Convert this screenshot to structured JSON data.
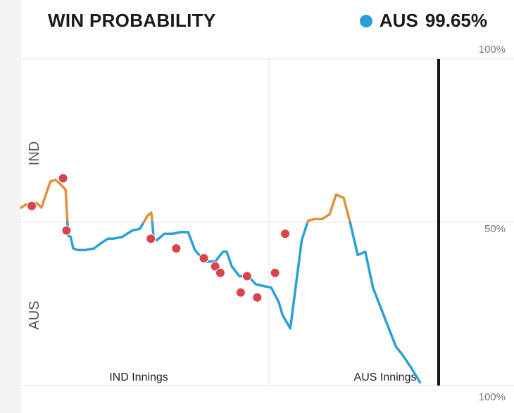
{
  "header": {
    "title": "WIN PROBABILITY",
    "legend_team": "AUS",
    "legend_value": "99.65%",
    "legend_color": "#2a9fd8"
  },
  "chart_data": {
    "type": "line",
    "title": "WIN PROBABILITY",
    "y_axis": {
      "top_label": "100%",
      "mid_label": "50%",
      "bottom_label": "100%",
      "top_team": "IND",
      "bottom_team": "AUS"
    },
    "ylim": [
      -100,
      100
    ],
    "xlim": [
      0,
      100
    ],
    "innings_labels": [
      "IND Innings",
      "AUS Innings"
    ],
    "colors": {
      "ind": "#e0913a",
      "aus": "#2a9fd8",
      "wicket": "#d9434b",
      "current": "#111111"
    },
    "series": [
      {
        "x": [
          0.0,
          1.2,
          2.5,
          3.6,
          4.8,
          5.7,
          6.9,
          8.1,
          9.0,
          10.5,
          11.1,
          11.7,
          12.3,
          13.3,
          15.1,
          17.2,
          18.7,
          20.5,
          21.7,
          23.8,
          26.2,
          28.0,
          29.8,
          30.7,
          31.3,
          32.0,
          33.8,
          35.8,
          37.6,
          39.4,
          41.0,
          43.4,
          45.8,
          47.6,
          48.5,
          49.7,
          51.5,
          53.6,
          55.4,
          57.2,
          59.0,
          60.8,
          61.7,
          63.5,
          65.0,
          66.2,
          67.7,
          69.2,
          71.0,
          72.8,
          74.3,
          76.1,
          77.6,
          79.4,
          81.2,
          83.0,
          84.8,
          86.6,
          88.4,
          90.2,
          92.0,
          94.1
        ],
        "y": [
          9,
          11,
          10,
          12,
          9,
          16,
          25,
          26,
          24,
          20,
          -8,
          -9,
          -16,
          -17,
          -17,
          -16,
          -13,
          -10,
          -10,
          -9,
          -5,
          -4,
          4,
          6,
          -10,
          -11,
          -7,
          -7,
          -6,
          -6,
          -17,
          -24,
          -24,
          -18,
          -18,
          -27,
          -33,
          -33,
          -38,
          -39,
          -40,
          -49,
          -57,
          -65,
          -35,
          -11,
          1,
          2,
          2,
          5,
          17,
          15,
          0,
          -20,
          -18,
          -40,
          -52,
          -64,
          -76,
          -82,
          -89,
          -98
        ]
      }
    ],
    "wickets": [
      {
        "x": 2.5,
        "y": 10
      },
      {
        "x": 9.9,
        "y": 27
      },
      {
        "x": 10.7,
        "y": -5
      },
      {
        "x": 30.6,
        "y": -10
      },
      {
        "x": 36.6,
        "y": -16
      },
      {
        "x": 43.1,
        "y": -22
      },
      {
        "x": 45.8,
        "y": -27
      },
      {
        "x": 47.0,
        "y": -31
      },
      {
        "x": 51.8,
        "y": -43
      },
      {
        "x": 53.3,
        "y": -33
      },
      {
        "x": 55.7,
        "y": -46
      },
      {
        "x": 59.9,
        "y": -31
      },
      {
        "x": 62.3,
        "y": -7
      }
    ],
    "current_x": 98.5
  }
}
